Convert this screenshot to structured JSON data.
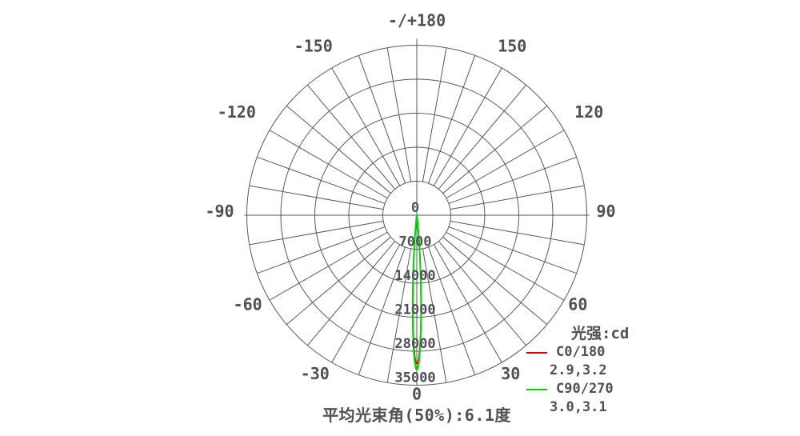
{
  "chart_data": {
    "type": "polar",
    "description": "Luminous intensity distribution curve (photometric polar diagram)",
    "title": "光强:cd",
    "caption": "平均光束角(50%):6.1度",
    "grid": true,
    "angle_grid_step_deg": 10,
    "angle_label_step_deg": 30,
    "angle_labels": [
      {
        "deg": 0,
        "text": "0"
      },
      {
        "deg": 30,
        "text": "30"
      },
      {
        "deg": 60,
        "text": "60"
      },
      {
        "deg": 90,
        "text": "90"
      },
      {
        "deg": 120,
        "text": "120"
      },
      {
        "deg": 150,
        "text": "150"
      },
      {
        "deg": 180,
        "text": "-/+180"
      },
      {
        "deg": -30,
        "text": "-30"
      },
      {
        "deg": -60,
        "text": "-60"
      },
      {
        "deg": -90,
        "text": "-90"
      },
      {
        "deg": -120,
        "text": "-120"
      },
      {
        "deg": -150,
        "text": "-150"
      }
    ],
    "radial_ticks": [
      {
        "value": 0,
        "label": "0"
      },
      {
        "value": 7000,
        "label": "7000"
      },
      {
        "value": 14000,
        "label": "14000"
      },
      {
        "value": 21000,
        "label": "21000"
      },
      {
        "value": 28000,
        "label": "28000"
      },
      {
        "value": 35000,
        "label": "35000"
      }
    ],
    "radial_max": 35000,
    "legend_position": "right-bottom",
    "series": [
      {
        "name": "C0/180",
        "color": "#dc0000",
        "beam_angles": "2.9,3.2",
        "half_angle_left_deg": 2.9,
        "half_angle_right_deg": 3.2,
        "peak_cd": 30600,
        "peak_direction_deg": 0
      },
      {
        "name": "C90/270",
        "color": "#00d800",
        "beam_angles": "3.0,3.1",
        "half_angle_left_deg": 3.0,
        "half_angle_right_deg": 3.1,
        "peak_cd": 31800,
        "peak_direction_deg": 0
      }
    ],
    "average_beam_angle_50pct_deg": 6.1
  },
  "colors": {
    "grid": "#55595d",
    "text": "#4d5156",
    "background": "#ffffff"
  }
}
